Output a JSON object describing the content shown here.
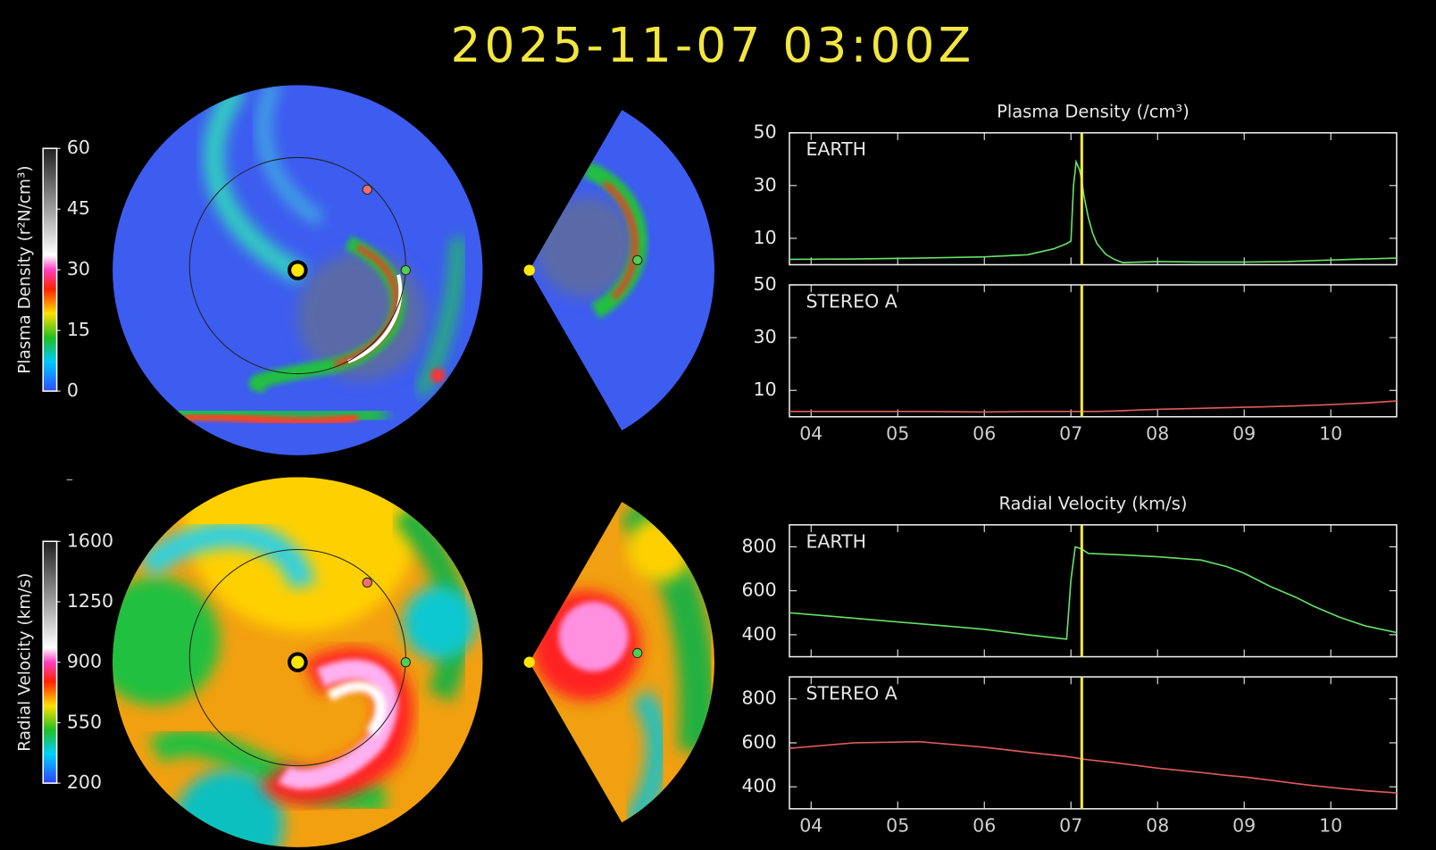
{
  "title": "2025-11-07 03:00Z",
  "colorbars": [
    {
      "label": "Plasma Density (r²N/cm³)",
      "lim": [
        0,
        60
      ],
      "ticks": [
        0,
        15,
        30,
        45,
        60
      ]
    },
    {
      "label": "Radial Velocity (km/s)",
      "lim": [
        200,
        1600
      ],
      "ticks": [
        200,
        550,
        900,
        1250,
        1600
      ]
    }
  ],
  "chart_data": [
    {
      "type": "line",
      "title": "Plasma Density (/cm³)",
      "x": [
        3.75,
        4.5,
        5.25,
        6.0,
        6.5,
        6.8,
        6.95,
        7.0,
        7.03,
        7.06,
        7.1,
        7.125,
        7.15,
        7.2,
        7.25,
        7.3,
        7.4,
        7.5,
        7.6,
        7.8,
        8.0,
        8.5,
        9.0,
        9.5,
        10.0,
        10.4,
        10.76
      ],
      "series": [
        {
          "name": "EARTH",
          "color": "#66e066",
          "values": [
            2,
            2.2,
            2.5,
            3,
            3.8,
            6,
            8,
            9,
            30,
            39,
            36,
            32,
            26,
            18,
            12,
            8,
            4,
            2,
            0.8,
            1,
            1.2,
            1,
            1,
            1.2,
            1.8,
            2.2,
            2.5
          ]
        }
      ],
      "xlim": [
        3.75,
        10.76
      ],
      "xticks": [
        4,
        5,
        6,
        7,
        8,
        9,
        10
      ],
      "ylim": [
        0,
        50
      ],
      "yticks": [
        10,
        30,
        50
      ],
      "marker_x": 7.125
    },
    {
      "type": "line",
      "x": [
        3.75,
        4.5,
        5.25,
        6.0,
        6.5,
        6.8,
        6.95,
        7.0,
        7.03,
        7.06,
        7.1,
        7.125,
        7.15,
        7.2,
        7.25,
        7.3,
        7.4,
        7.5,
        7.6,
        7.8,
        8.0,
        8.5,
        9.0,
        9.5,
        10.0,
        10.4,
        10.76
      ],
      "series": [
        {
          "name": "STEREO A",
          "color": "#e05a5a",
          "values": [
            2,
            2,
            2,
            1.8,
            2,
            2,
            2,
            2,
            2,
            2,
            2,
            2,
            2,
            2,
            2,
            2,
            2.1,
            2.2,
            2.3,
            2.6,
            2.8,
            3.2,
            3.6,
            4,
            4.6,
            5.2,
            6
          ]
        }
      ],
      "xlim": [
        3.75,
        10.76
      ],
      "xticks": [
        {
          "value": 4,
          "label": "04"
        },
        {
          "value": 5,
          "label": "05"
        },
        {
          "value": 6,
          "label": "06"
        },
        {
          "value": 7,
          "label": "07"
        },
        {
          "value": 8,
          "label": "08"
        },
        {
          "value": 9,
          "label": "09"
        },
        {
          "value": 10,
          "label": "10"
        }
      ],
      "ylim": [
        0,
        50
      ],
      "yticks": [
        10,
        30,
        50
      ],
      "marker_x": 7.125
    },
    {
      "type": "line",
      "title": "Radial Velocity (km/s)",
      "x": [
        3.75,
        4.5,
        5.25,
        6.0,
        6.5,
        6.9,
        6.95,
        7.0,
        7.05,
        7.125,
        7.2,
        7.5,
        8.0,
        8.5,
        8.8,
        9.0,
        9.3,
        9.6,
        9.8,
        10.1,
        10.4,
        10.76
      ],
      "series": [
        {
          "name": "EARTH",
          "color": "#66e066",
          "values": [
            500,
            475,
            450,
            425,
            400,
            382,
            380,
            650,
            800,
            790,
            770,
            765,
            755,
            740,
            710,
            680,
            620,
            570,
            530,
            480,
            440,
            410
          ]
        }
      ],
      "xlim": [
        3.75,
        10.76
      ],
      "xticks": [
        4,
        5,
        6,
        7,
        8,
        9,
        10
      ],
      "ylim": [
        300,
        900
      ],
      "yticks": [
        400,
        600,
        800
      ],
      "marker_x": 7.125
    },
    {
      "type": "line",
      "x": [
        3.75,
        4.5,
        5.25,
        6.0,
        6.5,
        6.9,
        6.95,
        7.0,
        7.05,
        7.125,
        7.2,
        7.5,
        8.0,
        8.5,
        8.8,
        9.0,
        9.3,
        9.6,
        9.8,
        10.1,
        10.4,
        10.76
      ],
      "series": [
        {
          "name": "STEREO A",
          "color": "#e05a5a",
          "values": [
            575,
            600,
            605,
            580,
            557,
            540,
            538,
            535,
            532,
            527,
            523,
            510,
            485,
            465,
            452,
            445,
            430,
            415,
            405,
            393,
            382,
            372
          ]
        }
      ],
      "xlim": [
        3.75,
        10.76
      ],
      "xticks": [
        {
          "value": 4,
          "label": "04"
        },
        {
          "value": 5,
          "label": "05"
        },
        {
          "value": 6,
          "label": "06"
        },
        {
          "value": 7,
          "label": "07"
        },
        {
          "value": 8,
          "label": "08"
        },
        {
          "value": 9,
          "label": "09"
        },
        {
          "value": 10,
          "label": "10"
        }
      ],
      "ylim": [
        300,
        900
      ],
      "yticks": [
        400,
        600,
        800
      ],
      "marker_x": 7.125
    }
  ]
}
